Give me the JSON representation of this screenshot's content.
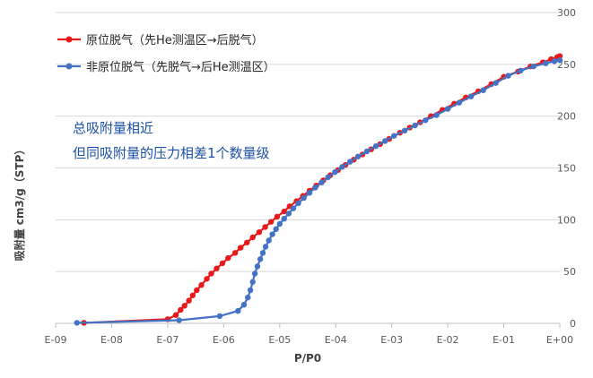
{
  "chart_data": {
    "type": "line",
    "xlabel": "P/P0",
    "ylabel": "吸附量 cm3/g（STP）",
    "x_scale": "log",
    "xlim": [
      1e-09,
      1
    ],
    "ylim": [
      0,
      300
    ],
    "x_tick_labels": [
      "E-09",
      "E-08",
      "E-07",
      "E-06",
      "E-05",
      "E-04",
      "E-03",
      "E-02",
      "E-01",
      "E+00"
    ],
    "y_tick_labels": [
      "0",
      "50",
      "100",
      "150",
      "200",
      "250",
      "300"
    ],
    "y_axis_side": "right",
    "grid": "horizontal",
    "legend_placement": "top-left",
    "annotation": [
      "总吸附量相近",
      "但同吸附量的压力相差1个数量级"
    ],
    "series": [
      {
        "name": "原位脱气（先He测温区→后脱气）",
        "color": "#e8191b",
        "points": [
          [
            3.2e-09,
            0.5
          ],
          [
            1e-07,
            4
          ],
          [
            1.4e-07,
            8
          ],
          [
            1.7e-07,
            13
          ],
          [
            2e-07,
            17
          ],
          [
            2.4e-07,
            22
          ],
          [
            2.8e-07,
            27
          ],
          [
            3.3e-07,
            32
          ],
          [
            4e-07,
            37
          ],
          [
            5e-07,
            43
          ],
          [
            6e-07,
            48
          ],
          [
            7.5e-07,
            53
          ],
          [
            9.5e-07,
            58
          ],
          [
            1.2e-06,
            63
          ],
          [
            1.6e-06,
            68
          ],
          [
            2e-06,
            73
          ],
          [
            2.6e-06,
            78
          ],
          [
            3.3e-06,
            83
          ],
          [
            4.3e-06,
            88
          ],
          [
            5.5e-06,
            93
          ],
          [
            7e-06,
            98
          ],
          [
            9e-06,
            103
          ],
          [
            1.2e-05,
            108
          ],
          [
            1.5e-05,
            113
          ],
          [
            2e-05,
            118
          ],
          [
            2.6e-05,
            123
          ],
          [
            3.4e-05,
            128
          ],
          [
            4.5e-05,
            133
          ],
          [
            6e-05,
            138
          ],
          [
            8e-05,
            143
          ],
          [
            0.00011,
            148
          ],
          [
            0.00015,
            153
          ],
          [
            0.00021,
            158
          ],
          [
            0.0003,
            163
          ],
          [
            0.00043,
            168
          ],
          [
            0.00062,
            173
          ],
          [
            0.0009,
            178
          ],
          [
            0.0014,
            184
          ],
          [
            0.0021,
            189
          ],
          [
            0.0032,
            194
          ],
          [
            0.005,
            200
          ],
          [
            0.008,
            206
          ],
          [
            0.013,
            212
          ],
          [
            0.021,
            218
          ],
          [
            0.035,
            224
          ],
          [
            0.06,
            231
          ],
          [
            0.1,
            238
          ],
          [
            0.18,
            243
          ],
          [
            0.3,
            248
          ],
          [
            0.5,
            252
          ],
          [
            0.7,
            255
          ],
          [
            0.9,
            257
          ],
          [
            1.0,
            258
          ]
        ]
      },
      {
        "name": "非原位脱气（先脱气→后He测温区）",
        "color": "#4472c4",
        "points": [
          [
            2.4e-09,
            0.5
          ],
          [
            1.6e-07,
            3
          ],
          [
            8.5e-07,
            7
          ],
          [
            1.8e-06,
            12
          ],
          [
            2.3e-06,
            18
          ],
          [
            2.7e-06,
            25
          ],
          [
            3e-06,
            32
          ],
          [
            3.3e-06,
            40
          ],
          [
            3.6e-06,
            48
          ],
          [
            4e-06,
            55
          ],
          [
            4.5e-06,
            62
          ],
          [
            5e-06,
            68
          ],
          [
            5.6e-06,
            74
          ],
          [
            6.4e-06,
            80
          ],
          [
            7.4e-06,
            86
          ],
          [
            8.6e-06,
            91
          ],
          [
            1e-05,
            96
          ],
          [
            1.2e-05,
            101
          ],
          [
            1.45e-05,
            106
          ],
          [
            1.75e-05,
            111
          ],
          [
            2.15e-05,
            116
          ],
          [
            2.7e-05,
            121
          ],
          [
            3.4e-05,
            126
          ],
          [
            4.3e-05,
            131
          ],
          [
            5.6e-05,
            136
          ],
          [
            7.3e-05,
            141
          ],
          [
            9.7e-05,
            146
          ],
          [
            0.00013,
            151
          ],
          [
            0.00018,
            156
          ],
          [
            0.00025,
            161
          ],
          [
            0.00036,
            166
          ],
          [
            0.00052,
            171
          ],
          [
            0.00076,
            176
          ],
          [
            0.0011,
            181
          ],
          [
            0.0017,
            186
          ],
          [
            0.0026,
            191
          ],
          [
            0.004,
            196
          ],
          [
            0.0063,
            201
          ],
          [
            0.01,
            207
          ],
          [
            0.016,
            213
          ],
          [
            0.026,
            219
          ],
          [
            0.043,
            225
          ],
          [
            0.072,
            232
          ],
          [
            0.12,
            239
          ],
          [
            0.2,
            244
          ],
          [
            0.34,
            248
          ],
          [
            0.56,
            251
          ],
          [
            0.8,
            253
          ],
          [
            1.0,
            254
          ]
        ]
      }
    ]
  }
}
